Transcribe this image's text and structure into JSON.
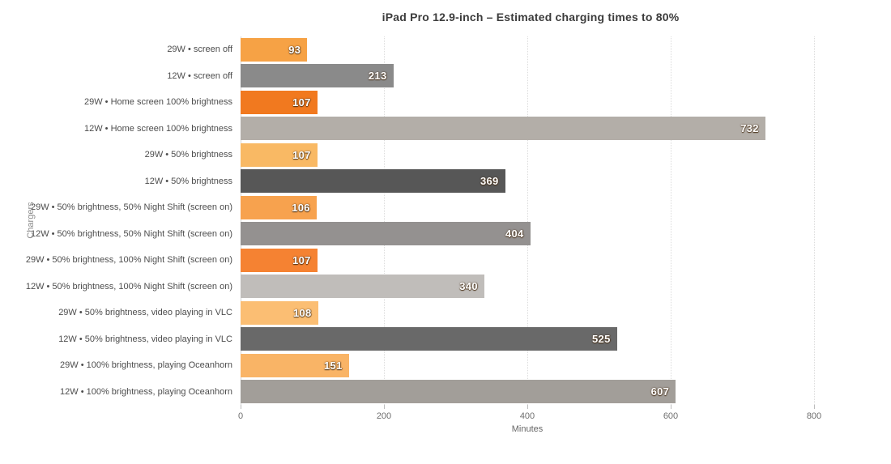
{
  "chart_data": {
    "type": "bar",
    "orientation": "horizontal",
    "title": "iPad Pro 12.9-inch – Estimated charging times to 80%",
    "xlabel": "Minutes",
    "ylabel": "Chargers",
    "xlim": [
      0,
      800
    ],
    "xticks": [
      0,
      200,
      400,
      600,
      800
    ],
    "grid": true,
    "legend": false,
    "value_labels": "inside-right",
    "categories": [
      "29W • screen off",
      "12W • screen off",
      "29W • Home screen 100% brightness",
      "12W • Home screen 100% brightness",
      "29W • 50% brightness",
      "12W • 50% brightness",
      "29W • 50% brightness, 50% Night Shift (screen on)",
      "12W • 50% brightness, 50% Night Shift (screen on)",
      "29W • 50% brightness, 100% Night Shift (screen on)",
      "12W • 50% brightness, 100% Night Shift (screen on)",
      "29W • 50% brightness, video playing in VLC",
      "12W • 50% brightness, video playing in VLC",
      "29W • 100% brightness, playing Oceanhorn",
      "12W • 100% brightness, playing Oceanhorn"
    ],
    "values": [
      93,
      213,
      107,
      732,
      107,
      369,
      106,
      404,
      107,
      340,
      108,
      525,
      151,
      607
    ],
    "bar_colors": [
      "#f6a245",
      "#8a8a8a",
      "#f1791f",
      "#b3aea8",
      "#f9b964",
      "#575757",
      "#f7a24e",
      "#949190",
      "#f58232",
      "#c0bdba",
      "#fbbe73",
      "#696969",
      "#f9b466",
      "#a29e99"
    ]
  }
}
